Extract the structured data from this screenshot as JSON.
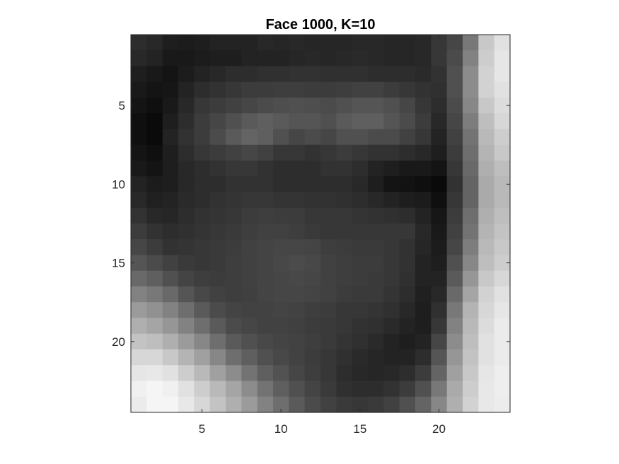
{
  "chart_data": {
    "type": "heatmap",
    "title": "Face 1000, K=10",
    "xlabel": "",
    "ylabel": "",
    "colormap": "gray",
    "xlim": [
      0.5,
      24.5
    ],
    "ylim": [
      0.5,
      24.5
    ],
    "y_axis_direction": "reverse",
    "x_ticks": [
      5,
      10,
      15,
      20
    ],
    "y_ticks": [
      5,
      10,
      15,
      20
    ],
    "x_tick_labels": [
      "5",
      "10",
      "15",
      "20"
    ],
    "y_tick_labels": [
      "5",
      "10",
      "15",
      "20"
    ],
    "grid": false,
    "legend": "none",
    "color_range": [
      0,
      255
    ],
    "values": [
      [
        45,
        40,
        30,
        28,
        30,
        35,
        35,
        35,
        40,
        38,
        40,
        38,
        38,
        38,
        40,
        40,
        38,
        38,
        40,
        55,
        70,
        120,
        200,
        225
      ],
      [
        40,
        35,
        25,
        25,
        28,
        30,
        30,
        35,
        35,
        35,
        38,
        40,
        38,
        40,
        42,
        40,
        38,
        38,
        40,
        55,
        75,
        130,
        205,
        230
      ],
      [
        30,
        25,
        20,
        28,
        35,
        40,
        45,
        45,
        48,
        48,
        50,
        50,
        48,
        48,
        48,
        45,
        45,
        45,
        42,
        50,
        80,
        140,
        210,
        230
      ],
      [
        25,
        20,
        22,
        35,
        45,
        50,
        55,
        60,
        60,
        62,
        62,
        60,
        60,
        62,
        65,
        65,
        60,
        55,
        50,
        48,
        80,
        140,
        210,
        225
      ],
      [
        20,
        15,
        25,
        40,
        55,
        60,
        65,
        70,
        75,
        78,
        80,
        78,
        75,
        80,
        85,
        85,
        80,
        70,
        55,
        45,
        75,
        135,
        200,
        220
      ],
      [
        15,
        10,
        30,
        45,
        60,
        70,
        80,
        90,
        95,
        90,
        85,
        85,
        80,
        90,
        95,
        95,
        85,
        75,
        60,
        40,
        70,
        125,
        190,
        215
      ],
      [
        15,
        10,
        35,
        50,
        60,
        75,
        90,
        100,
        95,
        80,
        70,
        75,
        70,
        80,
        80,
        75,
        75,
        65,
        55,
        35,
        65,
        115,
        185,
        205
      ],
      [
        20,
        15,
        30,
        45,
        55,
        60,
        65,
        70,
        65,
        55,
        55,
        50,
        55,
        60,
        55,
        50,
        50,
        45,
        40,
        30,
        60,
        110,
        180,
        200
      ],
      [
        25,
        20,
        30,
        40,
        45,
        50,
        55,
        55,
        50,
        45,
        45,
        45,
        50,
        50,
        45,
        35,
        30,
        25,
        25,
        20,
        55,
        105,
        175,
        190
      ],
      [
        35,
        28,
        30,
        40,
        45,
        45,
        50,
        50,
        50,
        45,
        45,
        45,
        45,
        45,
        40,
        30,
        20,
        18,
        15,
        10,
        50,
        100,
        170,
        185
      ],
      [
        40,
        32,
        35,
        42,
        45,
        50,
        52,
        55,
        55,
        52,
        52,
        50,
        50,
        48,
        45,
        40,
        35,
        30,
        28,
        15,
        55,
        100,
        170,
        185
      ],
      [
        50,
        40,
        38,
        45,
        50,
        52,
        55,
        60,
        62,
        60,
        60,
        55,
        55,
        55,
        52,
        50,
        48,
        45,
        35,
        22,
        60,
        110,
        175,
        190
      ],
      [
        60,
        50,
        45,
        48,
        52,
        55,
        58,
        62,
        65,
        65,
        62,
        58,
        55,
        55,
        55,
        55,
        55,
        55,
        40,
        25,
        65,
        115,
        180,
        195
      ],
      [
        70,
        60,
        50,
        52,
        55,
        58,
        60,
        65,
        68,
        70,
        70,
        68,
        62,
        60,
        58,
        58,
        55,
        50,
        38,
        28,
        70,
        125,
        185,
        200
      ],
      [
        85,
        75,
        65,
        58,
        55,
        58,
        62,
        65,
        68,
        72,
        75,
        72,
        65,
        62,
        60,
        60,
        55,
        50,
        35,
        30,
        80,
        135,
        190,
        205
      ],
      [
        105,
        95,
        80,
        68,
        62,
        60,
        62,
        65,
        68,
        70,
        72,
        70,
        65,
        62,
        60,
        58,
        55,
        48,
        35,
        35,
        90,
        150,
        200,
        215
      ],
      [
        130,
        120,
        105,
        85,
        72,
        65,
        62,
        64,
        68,
        70,
        70,
        68,
        65,
        60,
        58,
        58,
        52,
        45,
        32,
        40,
        105,
        165,
        210,
        225
      ],
      [
        155,
        145,
        130,
        110,
        90,
        75,
        68,
        66,
        66,
        68,
        66,
        62,
        60,
        55,
        55,
        52,
        48,
        40,
        30,
        48,
        120,
        180,
        215,
        230
      ],
      [
        175,
        165,
        150,
        130,
        110,
        90,
        75,
        70,
        66,
        66,
        64,
        60,
        58,
        55,
        50,
        48,
        42,
        35,
        30,
        55,
        130,
        185,
        220,
        235
      ],
      [
        195,
        190,
        175,
        155,
        135,
        110,
        90,
        80,
        72,
        68,
        66,
        62,
        58,
        52,
        48,
        42,
        35,
        30,
        35,
        70,
        140,
        190,
        225,
        235
      ],
      [
        215,
        215,
        200,
        180,
        160,
        135,
        110,
        95,
        80,
        72,
        66,
        60,
        55,
        48,
        42,
        38,
        35,
        35,
        45,
        85,
        150,
        195,
        225,
        235
      ],
      [
        230,
        232,
        225,
        205,
        185,
        160,
        140,
        115,
        95,
        82,
        70,
        62,
        55,
        45,
        40,
        38,
        40,
        45,
        60,
        100,
        160,
        200,
        230,
        238
      ],
      [
        240,
        245,
        240,
        225,
        205,
        185,
        165,
        140,
        115,
        95,
        80,
        68,
        58,
        48,
        45,
        45,
        50,
        60,
        80,
        120,
        170,
        205,
        232,
        238
      ],
      [
        235,
        245,
        245,
        232,
        215,
        195,
        175,
        155,
        130,
        110,
        90,
        75,
        65,
        58,
        55,
        58,
        65,
        80,
        100,
        135,
        175,
        210,
        232,
        236
      ]
    ]
  }
}
